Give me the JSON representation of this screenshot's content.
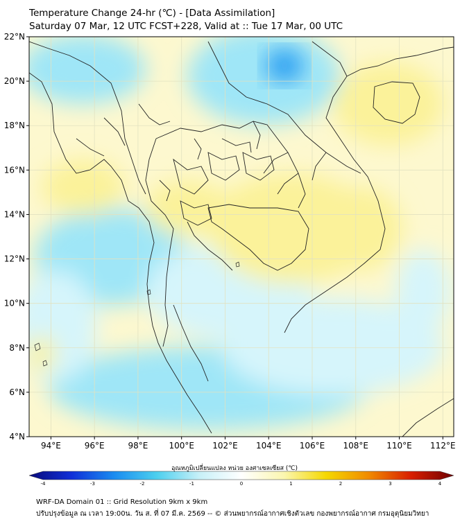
{
  "title": {
    "line1": "Temperature Change 24-hr (℃) - [Data Assimilation]",
    "line2": "Saturday 07 Mar, 12 UTC FCST+228, Valid at :: Tue 17 Mar, 00 UTC"
  },
  "map": {
    "lat_range": [
      4,
      22
    ],
    "lon_range": [
      93,
      112.5
    ],
    "lat_ticks": [
      "22°N",
      "20°N",
      "18°N",
      "16°N",
      "14°N",
      "12°N",
      "10°N",
      "8°N",
      "6°N",
      "4°N"
    ],
    "lat_values": [
      22,
      20,
      18,
      16,
      14,
      12,
      10,
      8,
      6,
      4
    ],
    "lon_ticks": [
      "94°E",
      "96°E",
      "98°E",
      "100°E",
      "102°E",
      "104°E",
      "106°E",
      "108°E",
      "110°E",
      "112°E"
    ],
    "lon_values": [
      94,
      96,
      98,
      100,
      102,
      104,
      106,
      108,
      110,
      112
    ],
    "colors": {
      "cyan": "#9fe6f7",
      "light_cyan": "#d6f5fb",
      "blue": "#2a9ff2",
      "yellow": "#fbf29a",
      "light_yellow": "#fdf8cf",
      "grid": "#e2e2c0",
      "border": "#222222"
    }
  },
  "colorbar": {
    "label": "อุณหภูมิเปลี่ยนแปลง หน่วย องศาเซลเซียส (℃)",
    "min": -4,
    "max": 4,
    "ticks": [
      "-4",
      "-3",
      "-2",
      "-1",
      "0",
      "1",
      "2",
      "3",
      "4"
    ],
    "tick_values": [
      -4,
      -3,
      -2,
      -1,
      0,
      1,
      2,
      3,
      4
    ],
    "stops": [
      "#0a0a7a",
      "#1030d8",
      "#1a8cf0",
      "#4ccfee",
      "#c7f0f8",
      "#ffffff",
      "#fbf6b0",
      "#f5d800",
      "#f08a00",
      "#d81e00",
      "#6e0000"
    ]
  },
  "footer": {
    "line1": "WRF-DA Domain 01 :: Grid Resolution 9km x 9km",
    "line2": "ปรับปรุงข้อมูล ณ เวลา 19:00น. วัน ส. ที่ 07 มี.ค. 2569 -- © ส่วนพยากรณ์อากาศเชิงตัวเลข กองพยากรณ์อากาศ กรมอุตุนิยมวิทยา"
  }
}
